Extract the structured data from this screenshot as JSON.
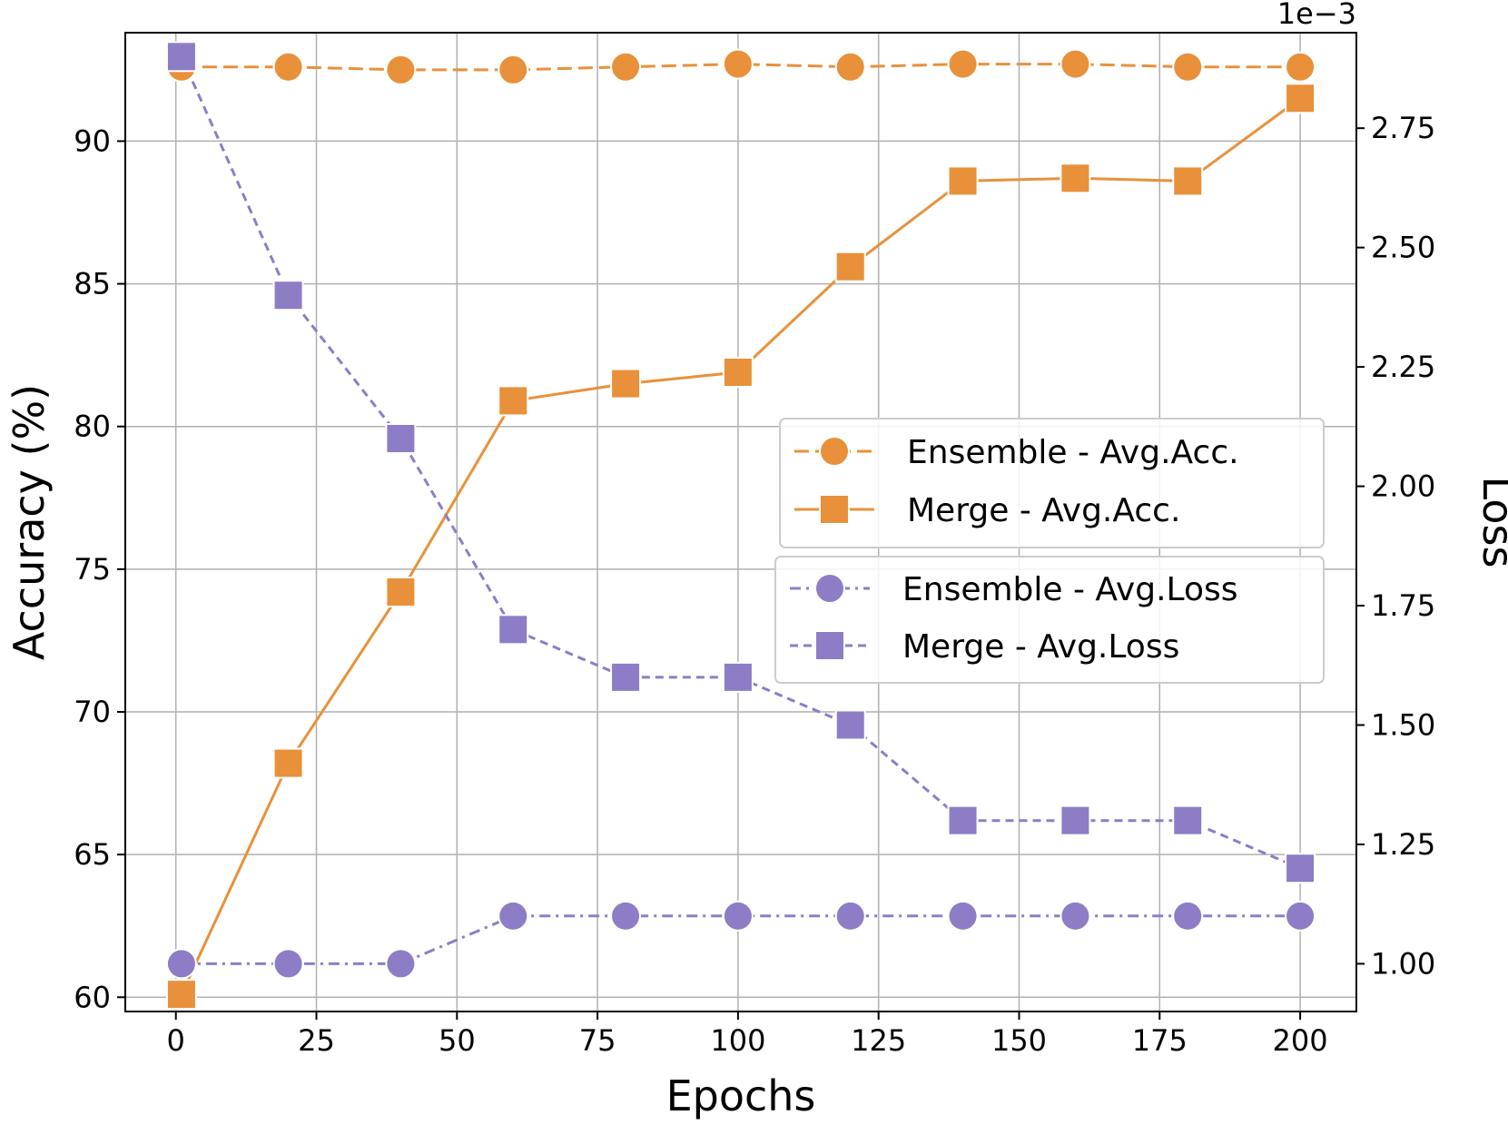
{
  "chart_data": {
    "type": "line",
    "xlabel": "Epochs",
    "ylabel_left": "Accuracy (%)",
    "ylabel_right": "Loss",
    "right_axis_multiplier": "1e−3",
    "xlim": [
      -9,
      210
    ],
    "ylim_left": [
      59.5,
      93.8
    ],
    "ylim_right": [
      0.9,
      2.95
    ],
    "xticks": [
      0,
      25,
      50,
      75,
      100,
      125,
      150,
      175,
      200
    ],
    "yticks_left": [
      60,
      65,
      70,
      75,
      80,
      85,
      90
    ],
    "yticks_right": [
      "1.00",
      "1.25",
      "1.50",
      "1.75",
      "2.00",
      "2.25",
      "2.50",
      "2.75"
    ],
    "grid": true,
    "x": [
      1,
      20,
      40,
      60,
      80,
      100,
      120,
      140,
      160,
      180,
      200
    ],
    "series": [
      {
        "name": "Ensemble - Avg.Acc.",
        "axis": "left",
        "color": "#e8913a",
        "marker": "circle",
        "dash": "long-dash",
        "values": [
          92.6,
          92.6,
          92.5,
          92.5,
          92.6,
          92.7,
          92.6,
          92.7,
          92.7,
          92.6,
          92.6
        ]
      },
      {
        "name": "Merge - Avg.Acc.",
        "axis": "left",
        "color": "#e8913a",
        "marker": "square",
        "dash": "solid",
        "values": [
          60.1,
          68.2,
          74.2,
          80.9,
          81.5,
          81.9,
          85.6,
          88.6,
          88.7,
          88.6,
          91.5
        ]
      },
      {
        "name": "Ensemble - Avg.Loss",
        "axis": "right",
        "color": "#8d7dc6",
        "marker": "circle",
        "dash": "dash-dot",
        "values": [
          1.0,
          1.0,
          1.0,
          1.1,
          1.1,
          1.1,
          1.1,
          1.1,
          1.1,
          1.1,
          1.1
        ]
      },
      {
        "name": "Merge - Avg.Loss",
        "axis": "right",
        "color": "#8d7dc6",
        "marker": "square",
        "dash": "dashed",
        "values": [
          2.9,
          2.4,
          2.1,
          1.7,
          1.6,
          1.6,
          1.5,
          1.3,
          1.3,
          1.3,
          1.2
        ]
      }
    ],
    "legends": [
      {
        "placement": "center-right",
        "entries": [
          "Ensemble - Avg.Acc.",
          "Merge - Avg.Acc."
        ]
      },
      {
        "placement": "center-right",
        "entries": [
          "Ensemble - Avg.Loss",
          "Merge - Avg.Loss"
        ]
      }
    ]
  }
}
